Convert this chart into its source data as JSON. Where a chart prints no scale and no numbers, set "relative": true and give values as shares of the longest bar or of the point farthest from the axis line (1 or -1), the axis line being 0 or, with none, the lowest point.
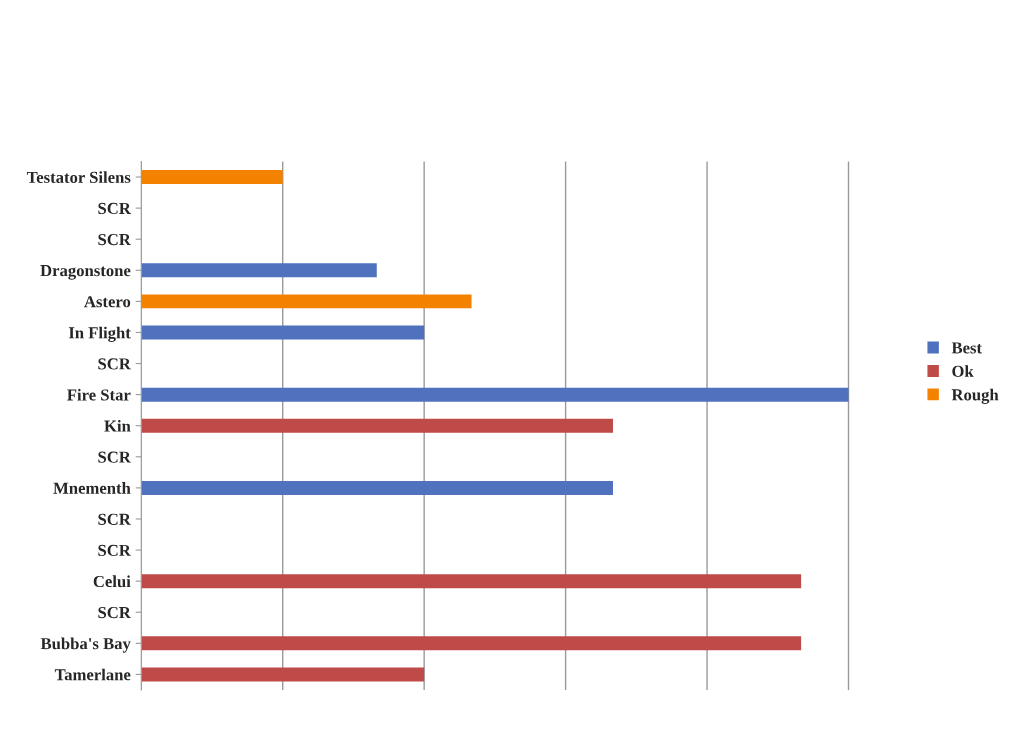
{
  "chart_data": {
    "type": "bar",
    "orientation": "horizontal",
    "relative": true,
    "grid": "x",
    "legend": "right",
    "categories": [
      "Testator Silens",
      "SCR",
      "SCR",
      "Dragonstone",
      "Astero",
      "In Flight",
      "SCR",
      "Fire Star",
      "Kin",
      "SCR",
      "Mnementh",
      "SCR",
      "SCR",
      "Celui",
      "SCR",
      "Bubba's Bay",
      "Tamerlane"
    ],
    "series": [
      {
        "name": "Best",
        "color": "#4f71be",
        "values": [
          null,
          null,
          null,
          0.333,
          null,
          0.4,
          null,
          1,
          null,
          null,
          0.667,
          null,
          null,
          null,
          null,
          null,
          null
        ]
      },
      {
        "name": "Ok",
        "color": "#be4b48",
        "values": [
          null,
          null,
          null,
          null,
          null,
          null,
          null,
          null,
          0.667,
          null,
          null,
          null,
          null,
          0.933,
          null,
          0.933,
          0.4
        ]
      },
      {
        "name": "Rough",
        "color": "#f38200",
        "values": [
          0.2,
          null,
          null,
          null,
          0.467,
          null,
          null,
          null,
          null,
          null,
          null,
          null,
          null,
          null,
          null,
          null,
          null
        ]
      }
    ]
  }
}
